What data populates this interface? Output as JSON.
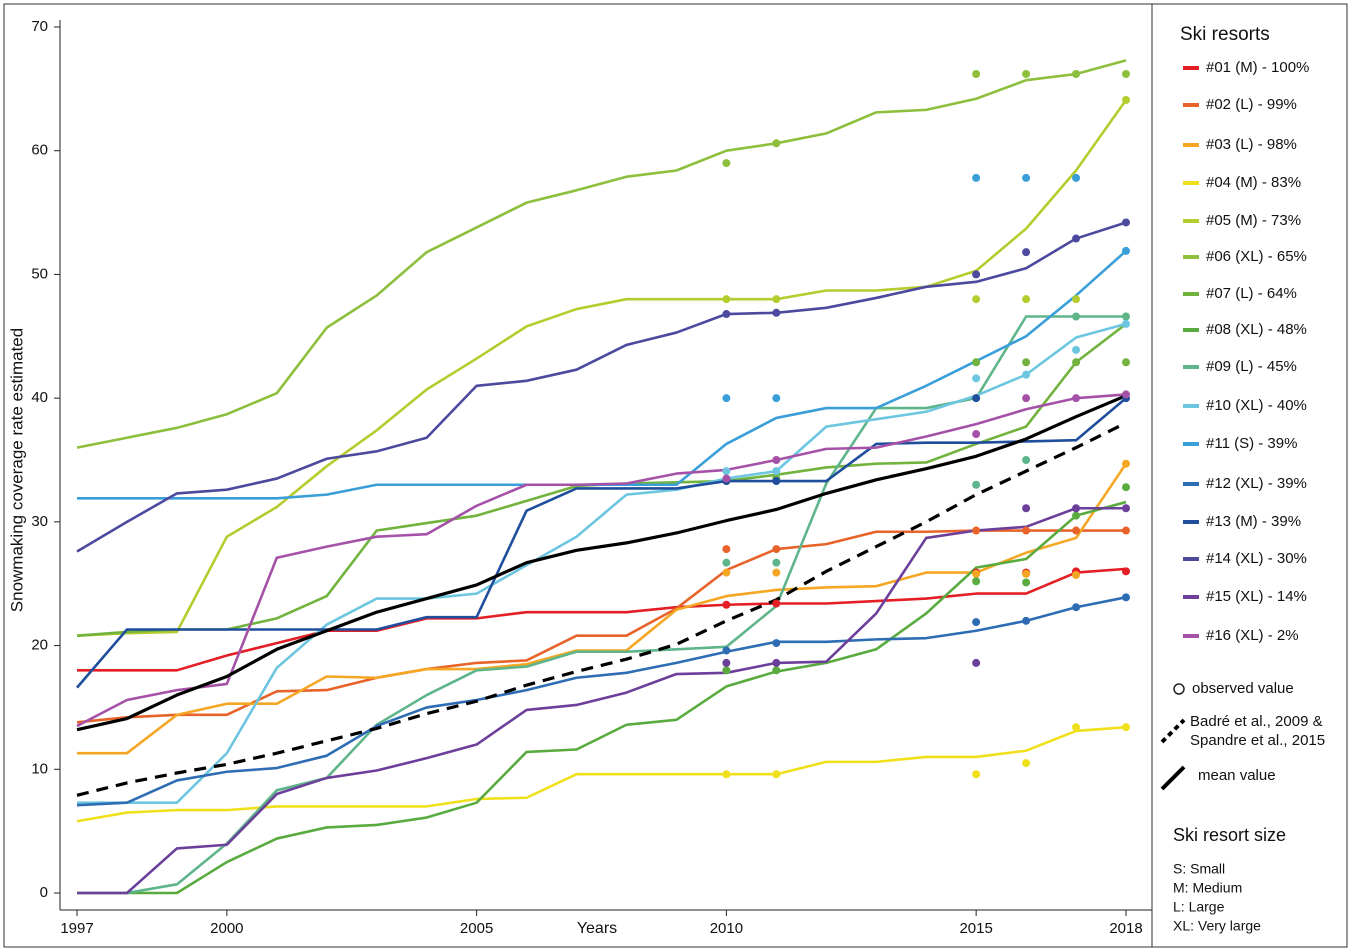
{
  "chart_data": {
    "type": "line",
    "ylabel": "Snowmaking coverage rate estimated",
    "xlabel": "Years",
    "x": [
      1997,
      1998,
      1999,
      2000,
      2001,
      2002,
      2003,
      2004,
      2005,
      2006,
      2007,
      2008,
      2009,
      2010,
      2011,
      2012,
      2013,
      2014,
      2015,
      2016,
      2017,
      2018
    ],
    "xlim": [
      1997,
      2018
    ],
    "xticks": [
      1997,
      2000,
      2005,
      2010,
      2015,
      2018
    ],
    "ylim": [
      0,
      70
    ],
    "yticks": [
      0,
      10,
      20,
      30,
      40,
      50,
      60,
      70
    ],
    "observed_x": [
      2010,
      2011,
      2015,
      2016,
      2017,
      2018
    ],
    "legend_title": "Ski resorts",
    "observed_label": "observed value",
    "size_title": "Ski resort size",
    "size_items": [
      "S: Small",
      "M: Medium",
      "L: Large",
      "XL: Very large"
    ],
    "series": [
      {
        "name": "#01 (M) - 100%",
        "color": "#e31e24",
        "values": [
          18,
          18,
          18,
          19.2,
          20.2,
          21.2,
          21.2,
          22.2,
          22.2,
          22.7,
          22.7,
          22.7,
          23.1,
          23.3,
          23.4,
          23.4,
          23.6,
          23.8,
          24.2,
          24.2,
          25.9,
          26.2
        ],
        "observed": [
          23.3,
          23.4,
          25.9,
          25.9,
          26,
          26
        ]
      },
      {
        "name": "#02 (L) - 99%",
        "color": "#e8632a",
        "values": [
          13.8,
          14.2,
          14.4,
          14.4,
          16.3,
          16.4,
          17.4,
          18.1,
          18.6,
          18.8,
          20.8,
          20.8,
          23,
          26.1,
          27.8,
          28.2,
          29.2,
          29.2,
          29.3,
          29.3,
          29.3,
          29.3
        ],
        "observed": [
          27.8,
          27.8,
          29.3,
          29.3,
          29.3,
          29.3
        ]
      },
      {
        "name": "#03 (L) - 98%",
        "color": "#f5a623",
        "values": [
          11.3,
          11.3,
          14.4,
          15.3,
          15.3,
          17.5,
          17.4,
          18.1,
          18.1,
          18.5,
          19.6,
          19.6,
          22.9,
          24,
          24.5,
          24.7,
          24.8,
          25.9,
          25.9,
          27.5,
          28.7,
          34.7
        ],
        "observed": [
          25.9,
          25.9,
          25.8,
          25.8,
          25.7,
          34.7
        ]
      },
      {
        "name": "#04 (M) - 83%",
        "color": "#f0e01c",
        "values": [
          5.8,
          6.5,
          6.7,
          6.7,
          7,
          7,
          7,
          7,
          7.6,
          7.7,
          9.6,
          9.6,
          9.6,
          9.6,
          9.6,
          10.6,
          10.6,
          11,
          11,
          11.5,
          13.1,
          13.4
        ],
        "observed": [
          9.6,
          9.6,
          9.6,
          10.5,
          13.4,
          13.4
        ]
      },
      {
        "name": "#05 (M) - 73%",
        "color": "#b5cc2e",
        "values": [
          20.8,
          21,
          21.1,
          28.8,
          31.2,
          34.5,
          37.4,
          40.7,
          43.2,
          45.8,
          47.2,
          48,
          48,
          48,
          48,
          48.7,
          48.7,
          49,
          50.3,
          53.7,
          58.4,
          64.1
        ],
        "observed": [
          48,
          48,
          48,
          48,
          48,
          64.1
        ]
      },
      {
        "name": "#06 (XL) - 65%",
        "color": "#8dbf3d",
        "values": [
          36,
          36.8,
          37.6,
          38.7,
          40.4,
          45.7,
          48.3,
          51.8,
          53.8,
          55.8,
          56.8,
          57.9,
          58.4,
          60,
          60.6,
          61.4,
          63.1,
          63.3,
          64.2,
          65.7,
          66.2,
          67.3
        ],
        "observed": [
          59,
          60.6,
          66.2,
          66.2,
          66.2,
          66.2
        ]
      },
      {
        "name": "#07 (L) - 64%",
        "color": "#72b33e",
        "values": [
          20.8,
          21.1,
          21.3,
          21.3,
          22.2,
          24,
          29.3,
          29.9,
          30.5,
          31.7,
          32.9,
          33.1,
          33.2,
          33.3,
          33.8,
          34.4,
          34.7,
          34.8,
          36.3,
          37.7,
          42.9,
          46
        ],
        "observed": [
          33.3,
          33.5,
          42.9,
          42.9,
          42.9,
          42.9
        ]
      },
      {
        "name": "#08 (XL) - 48%",
        "color": "#5aab3f",
        "values": [
          0,
          0,
          0,
          2.5,
          4.4,
          5.3,
          5.5,
          6.1,
          7.3,
          11.4,
          11.6,
          13.6,
          14,
          16.7,
          17.9,
          18.6,
          19.7,
          22.6,
          26.3,
          27,
          30.5,
          31.6
        ],
        "observed": [
          18,
          18,
          25.2,
          25.1,
          30.5,
          32.8
        ]
      },
      {
        "name": "#09 (L) - 45%",
        "color": "#5fb58a",
        "values": [
          0,
          0,
          0.7,
          4,
          8.3,
          9.3,
          13.6,
          16,
          18,
          18.3,
          19.5,
          19.5,
          19.7,
          19.9,
          23.2,
          33.1,
          39.2,
          39.2,
          40,
          46.6,
          46.6,
          46.6
        ],
        "observed": [
          26.7,
          26.7,
          33,
          35,
          46.6,
          46.6
        ]
      },
      {
        "name": "#10 (XL) - 40%",
        "color": "#6dc6e0",
        "values": [
          7.3,
          7.3,
          7.3,
          11.3,
          18.2,
          21.7,
          23.8,
          23.8,
          24.2,
          26.5,
          28.8,
          32.2,
          32.6,
          33.5,
          34.1,
          37.7,
          38.3,
          38.9,
          40.2,
          41.9,
          44.9,
          46
        ],
        "observed": [
          34.1,
          34.1,
          41.6,
          41.9,
          43.9,
          46
        ]
      },
      {
        "name": "#11 (S) - 39%",
        "color": "#3a9fd8",
        "values": [
          31.9,
          31.9,
          31.9,
          31.9,
          31.9,
          32.2,
          33,
          33,
          33,
          33,
          33,
          33,
          33,
          36.3,
          38.4,
          39.2,
          39.2,
          41,
          43,
          45,
          48.3,
          51.9
        ],
        "observed": [
          40,
          40,
          57.8,
          57.8,
          57.8,
          51.9
        ]
      },
      {
        "name": "#12 (XL) - 39%",
        "color": "#2e6db4",
        "values": [
          7.1,
          7.3,
          9.1,
          9.8,
          10.1,
          11.1,
          13.5,
          15,
          15.6,
          16.4,
          17.4,
          17.8,
          18.6,
          19.5,
          20.3,
          20.3,
          20.5,
          20.6,
          21.2,
          22,
          23.1,
          23.9
        ],
        "observed": [
          19.6,
          20.2,
          21.9,
          22,
          23.1,
          23.9
        ]
      },
      {
        "name": "#13 (M) - 39%",
        "color": "#1f4e9c",
        "values": [
          16.6,
          21.3,
          21.3,
          21.3,
          21.3,
          21.3,
          21.3,
          22.3,
          22.3,
          30.9,
          32.7,
          32.7,
          32.7,
          33.3,
          33.3,
          33.3,
          36.3,
          36.4,
          36.4,
          36.5,
          36.6,
          40
        ],
        "observed": [
          33.3,
          33.3,
          40,
          null,
          null,
          40
        ]
      },
      {
        "name": "#14 (XL) - 30%",
        "color": "#4b4a9e",
        "values": [
          27.6,
          30,
          32.3,
          32.6,
          33.5,
          35.1,
          35.7,
          36.8,
          41,
          41.4,
          42.3,
          44.3,
          45.3,
          46.8,
          46.9,
          47.3,
          48.1,
          49,
          49.4,
          50.5,
          52.9,
          54.2
        ],
        "observed": [
          46.8,
          46.9,
          50,
          51.8,
          52.9,
          54.2
        ]
      },
      {
        "name": "#15 (XL) - 14%",
        "color": "#6b3f9a",
        "values": [
          0,
          0,
          3.6,
          3.9,
          8,
          9.3,
          9.9,
          10.9,
          12,
          14.8,
          15.2,
          16.2,
          17.7,
          17.8,
          18.6,
          18.7,
          22.6,
          28.7,
          29.3,
          29.6,
          31.1,
          31.1
        ],
        "observed": [
          18.6,
          18.6,
          18.6,
          31.1,
          31.1,
          31.1
        ]
      },
      {
        "name": "#16 (XL) - 2%",
        "color": "#a551a8",
        "values": [
          13.5,
          15.6,
          16.4,
          16.9,
          27.1,
          28,
          28.8,
          29,
          31.3,
          33,
          33,
          33.1,
          33.9,
          34.2,
          35,
          35.9,
          36,
          36.9,
          37.9,
          39.1,
          40,
          40.3
        ],
        "observed": [
          33.5,
          35,
          37.1,
          40,
          40,
          40.3
        ]
      },
      {
        "name": "Badré et al., 2009 & Spandre et al., 2015",
        "color": "#000000",
        "dashed": true,
        "values": [
          7.9,
          8.9,
          9.7,
          10.4,
          11.3,
          12.3,
          13.3,
          14.5,
          15.5,
          16.8,
          17.9,
          18.9,
          20.1,
          22,
          23.7,
          26,
          28,
          30,
          32.2,
          34.1,
          36,
          38
        ]
      },
      {
        "name": "mean value",
        "color": "#000000",
        "values": [
          13.2,
          14.1,
          16,
          17.5,
          19.7,
          21.2,
          22.7,
          23.8,
          24.9,
          26.7,
          27.7,
          28.3,
          29.1,
          30.1,
          31,
          32.3,
          33.4,
          34.3,
          35.3,
          36.7,
          38.5,
          40.2
        ]
      }
    ]
  }
}
